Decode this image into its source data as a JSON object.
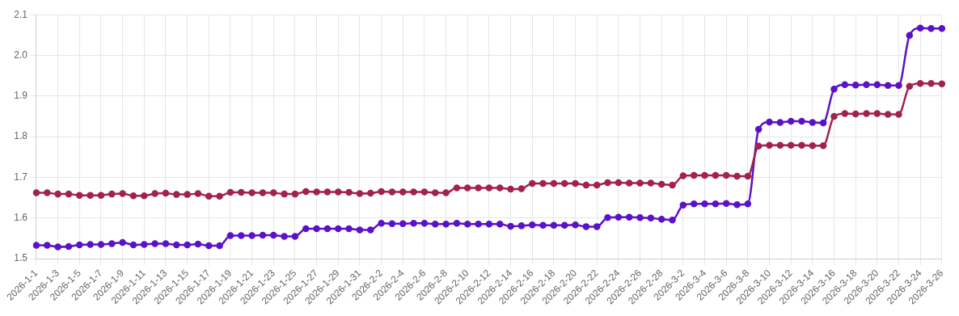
{
  "chart_data": {
    "type": "line",
    "categories": [
      "2026-1-1",
      null,
      "2026-1-3",
      null,
      "2026-1-5",
      null,
      "2026-1-7",
      null,
      "2026-1-9",
      null,
      "2026-1-11",
      null,
      "2026-1-13",
      null,
      "2026-1-15",
      null,
      "2026-1-17",
      null,
      "2026-1-19",
      null,
      "2026-1-21",
      null,
      "2026-1-23",
      null,
      "2026-1-25",
      null,
      "2026-1-27",
      null,
      "2026-1-29",
      null,
      "2026-1-31",
      null,
      "2026-2-2",
      null,
      "2026-2-4",
      null,
      "2026-2-6",
      null,
      "2026-2-8",
      null,
      "2026-2-10",
      null,
      "2026-2-12",
      null,
      "2026-2-14",
      null,
      "2026-2-16",
      null,
      "2026-2-18",
      null,
      "2026-2-20",
      null,
      "2026-2-22",
      null,
      "2026-2-24",
      null,
      "2026-2-26",
      null,
      "2026-2-28",
      null,
      "2026-3-2",
      null,
      "2026-3-4",
      null,
      "2026-3-6",
      null,
      "2026-3-8",
      null,
      "2026-3-10",
      null,
      "2026-3-12",
      null,
      "2026-3-14",
      null,
      "2026-3-16",
      null,
      "2026-3-18",
      null,
      "2026-3-20",
      null,
      "2026-3-22",
      null,
      "2026-3-24",
      null,
      "2026-3-26"
    ],
    "series": [
      {
        "color": "#a3224a",
        "values": [
          1.662,
          1.662,
          1.659,
          1.659,
          1.656,
          1.656,
          1.656,
          1.659,
          1.66,
          1.655,
          1.655,
          1.66,
          1.661,
          1.658,
          1.658,
          1.66,
          1.654,
          1.654,
          1.663,
          1.663,
          1.662,
          1.662,
          1.662,
          1.659,
          1.659,
          1.665,
          1.664,
          1.664,
          1.664,
          1.663,
          1.66,
          1.661,
          1.665,
          1.664,
          1.664,
          1.664,
          1.664,
          1.662,
          1.662,
          1.674,
          1.674,
          1.674,
          1.674,
          1.674,
          1.671,
          1.672,
          1.685,
          1.685,
          1.685,
          1.685,
          1.685,
          1.681,
          1.681,
          1.687,
          1.687,
          1.686,
          1.686,
          1.686,
          1.683,
          1.681,
          1.704,
          1.705,
          1.705,
          1.705,
          1.705,
          1.703,
          1.703,
          1.777,
          1.779,
          1.779,
          1.779,
          1.779,
          1.778,
          1.778,
          1.85,
          1.857,
          1.856,
          1.857,
          1.857,
          1.855,
          1.855,
          1.924,
          1.931,
          1.931,
          1.93
        ]
      },
      {
        "color": "#5a12c9",
        "values": [
          1.533,
          1.533,
          1.529,
          1.53,
          1.534,
          1.535,
          1.535,
          1.537,
          1.54,
          1.534,
          1.535,
          1.537,
          1.537,
          1.534,
          1.534,
          1.536,
          1.532,
          1.532,
          1.557,
          1.557,
          1.557,
          1.558,
          1.558,
          1.555,
          1.555,
          1.574,
          1.574,
          1.574,
          1.574,
          1.574,
          1.571,
          1.571,
          1.587,
          1.586,
          1.586,
          1.587,
          1.587,
          1.585,
          1.585,
          1.587,
          1.585,
          1.585,
          1.585,
          1.585,
          1.58,
          1.581,
          1.583,
          1.582,
          1.582,
          1.582,
          1.583,
          1.579,
          1.579,
          1.601,
          1.602,
          1.602,
          1.601,
          1.6,
          1.597,
          1.595,
          1.632,
          1.635,
          1.635,
          1.635,
          1.636,
          1.633,
          1.635,
          1.818,
          1.836,
          1.835,
          1.838,
          1.838,
          1.835,
          1.834,
          1.917,
          1.928,
          1.927,
          1.928,
          1.928,
          1.926,
          1.926,
          2.049,
          2.067,
          2.066,
          2.066
        ]
      }
    ],
    "ylim": [
      1.5,
      2.1
    ],
    "yticks": [
      1.5,
      1.6,
      1.7,
      1.8,
      1.9,
      {
        "value": 2,
        "label": "2.0"
      },
      2.1
    ],
    "grid": true,
    "legend": false,
    "marker": "circle",
    "line_style": "solid"
  }
}
